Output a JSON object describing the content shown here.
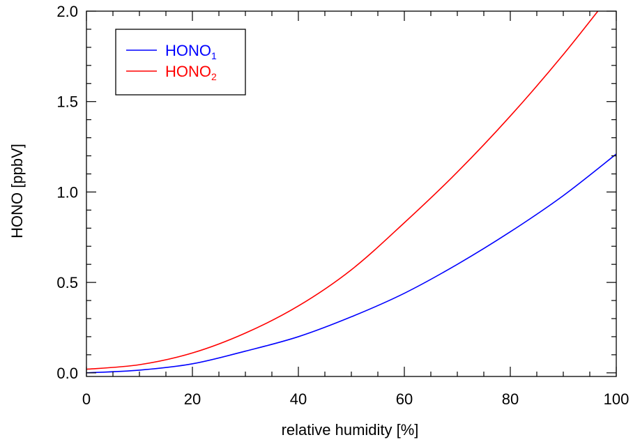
{
  "chart_data": {
    "type": "line",
    "title": "",
    "xlabel": "relative humidity [%]",
    "ylabel": "HONO [ppbV]",
    "xlim": [
      0,
      100
    ],
    "ylim": [
      -0.02,
      2.0
    ],
    "xticks": [
      0,
      20,
      40,
      60,
      80,
      100
    ],
    "xtick_labels": [
      "0",
      "20",
      "40",
      "60",
      "80",
      "100"
    ],
    "yticks": [
      0.0,
      0.5,
      1.0,
      1.5,
      2.0
    ],
    "ytick_labels": [
      "0.0",
      "0.5",
      "1.0",
      "1.5",
      "2.0"
    ],
    "grid": false,
    "legend_position": "top-left",
    "x": [
      0,
      10,
      20,
      30,
      40,
      50,
      60,
      70,
      80,
      90,
      100
    ],
    "series": [
      {
        "name": "HONO",
        "subscript": "1",
        "color": "#0000ff",
        "values": [
          0.0,
          0.015,
          0.05,
          0.12,
          0.2,
          0.31,
          0.44,
          0.6,
          0.78,
          0.98,
          1.21
        ]
      },
      {
        "name": "HONO",
        "subscript": "2",
        "color": "#ff0000",
        "values": [
          0.02,
          0.045,
          0.11,
          0.22,
          0.37,
          0.57,
          0.83,
          1.11,
          1.42,
          1.76,
          2.13
        ]
      }
    ]
  }
}
